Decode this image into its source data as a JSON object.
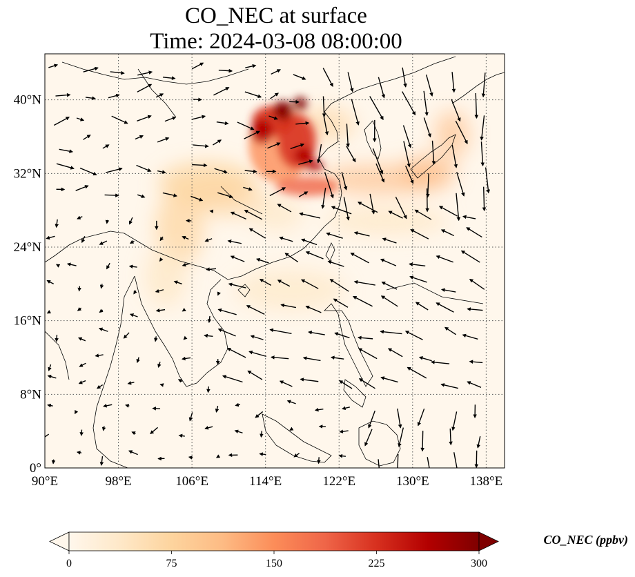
{
  "figure": {
    "title_line1": "CO_NEC at surface",
    "title_line2": "Time: 2024-03-08 08:00:00"
  },
  "map": {
    "extent": {
      "lon_min": 90,
      "lon_max": 140,
      "lat_min": 0,
      "lat_max": 45
    },
    "grid": "dotted",
    "lon_ticks": [
      {
        "value": 90,
        "label": "90°E"
      },
      {
        "value": 98,
        "label": "98°E"
      },
      {
        "value": 106,
        "label": "106°E"
      },
      {
        "value": 114,
        "label": "114°E"
      },
      {
        "value": 122,
        "label": "122°E"
      },
      {
        "value": 130,
        "label": "130°E"
      },
      {
        "value": 138,
        "label": "138°E"
      }
    ],
    "lat_ticks": [
      {
        "value": 0,
        "label": "0°"
      },
      {
        "value": 8,
        "label": "8°N"
      },
      {
        "value": 16,
        "label": "16°N"
      },
      {
        "value": 24,
        "label": "24°N"
      },
      {
        "value": 32,
        "label": "32°N"
      },
      {
        "value": 40,
        "label": "40°N"
      }
    ]
  },
  "colorbar": {
    "label": "CO_NEC (ppbv)",
    "min": 0,
    "max": 300,
    "colormap": "OrRd",
    "colors": [
      "#fff7ec",
      "#fee8c8",
      "#fdd49e",
      "#fdbb84",
      "#fc8d59",
      "#ef6548",
      "#d7301f",
      "#b30000",
      "#7f0000"
    ],
    "ticks": [
      {
        "value": 0,
        "label": "0"
      },
      {
        "value": 75,
        "label": "75"
      },
      {
        "value": 150,
        "label": "150"
      },
      {
        "value": 225,
        "label": "225"
      },
      {
        "value": 300,
        "label": "300"
      }
    ],
    "extend": "both"
  }
}
